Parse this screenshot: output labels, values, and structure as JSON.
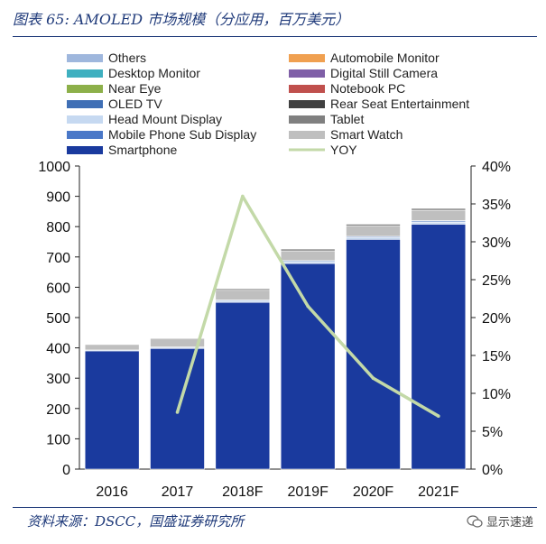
{
  "header": {
    "title": "图表 65:  AMOLED 市场规模（分应用，百万美元）"
  },
  "footer": {
    "source": "资料来源：DSCC，国盛证券研究所",
    "watermark": "显示速递"
  },
  "chart_data": {
    "type": "bar",
    "stacked": true,
    "categories": [
      "2016",
      "2017",
      "2018F",
      "2019F",
      "2020F",
      "2021F"
    ],
    "series": [
      {
        "name": "Smartphone",
        "color": "#1a3a9e",
        "values": [
          390,
          398,
          550,
          678,
          758,
          808
        ]
      },
      {
        "name": "Mobile Phone Sub Display",
        "color": "#4a78c8",
        "values": [
          0,
          0,
          0,
          0,
          0,
          0
        ]
      },
      {
        "name": "Head Mount Display",
        "color": "#c6d9f1",
        "values": [
          0,
          2,
          4,
          5,
          5,
          6
        ]
      },
      {
        "name": "OLED TV",
        "color": "#3f6fb5",
        "values": [
          0,
          0,
          0,
          0,
          0,
          0
        ]
      },
      {
        "name": "Near Eye",
        "color": "#8db04a",
        "values": [
          0,
          0,
          0,
          0,
          0,
          0
        ]
      },
      {
        "name": "Desktop Monitor",
        "color": "#3fb0c0",
        "values": [
          0,
          0,
          0,
          0,
          0,
          0
        ]
      },
      {
        "name": "Others",
        "color": "#9fb7dd",
        "values": [
          3,
          3,
          4,
          5,
          5,
          6
        ]
      },
      {
        "name": "Smart Watch",
        "color": "#bfbfbf",
        "values": [
          18,
          28,
          32,
          32,
          34,
          34
        ]
      },
      {
        "name": "Tablet",
        "color": "#808080",
        "values": [
          0,
          0,
          5,
          6,
          6,
          6
        ]
      },
      {
        "name": "Rear Seat Entertainment",
        "color": "#404040",
        "values": [
          0,
          0,
          0,
          0,
          0,
          0
        ]
      },
      {
        "name": "Notebook PC",
        "color": "#c0504d",
        "values": [
          0,
          0,
          0,
          0,
          0,
          0
        ]
      },
      {
        "name": "Digital Still Camera",
        "color": "#7f5fa7",
        "values": [
          0,
          0,
          0,
          0,
          0,
          0
        ]
      },
      {
        "name": "Automobile Monitor",
        "color": "#f0a050",
        "values": [
          0,
          0,
          0,
          0,
          0,
          0
        ]
      }
    ],
    "line_series": {
      "name": "YOY",
      "color": "#c3d9a8",
      "axis": "right",
      "values": [
        null,
        7.5,
        36,
        21.5,
        12,
        7
      ]
    },
    "ylim": [
      0,
      1000
    ],
    "yticks": [
      0,
      100,
      200,
      300,
      400,
      500,
      600,
      700,
      800,
      900,
      1000
    ],
    "y2lim": [
      0,
      40
    ],
    "y2ticks": [
      "0%",
      "5%",
      "10%",
      "15%",
      "20%",
      "25%",
      "30%",
      "35%",
      "40%"
    ],
    "legend": {
      "placement": "top",
      "columns": [
        [
          "Others",
          "Desktop Monitor",
          "Near Eye",
          "OLED TV",
          "Head Mount Display",
          "Mobile Phone Sub Display",
          "Smartphone"
        ],
        [
          "Automobile Monitor",
          "Digital Still Camera",
          "Notebook PC",
          "Rear Seat Entertainment",
          "Tablet",
          "Smart Watch",
          "YOY"
        ]
      ]
    },
    "grid": false
  }
}
